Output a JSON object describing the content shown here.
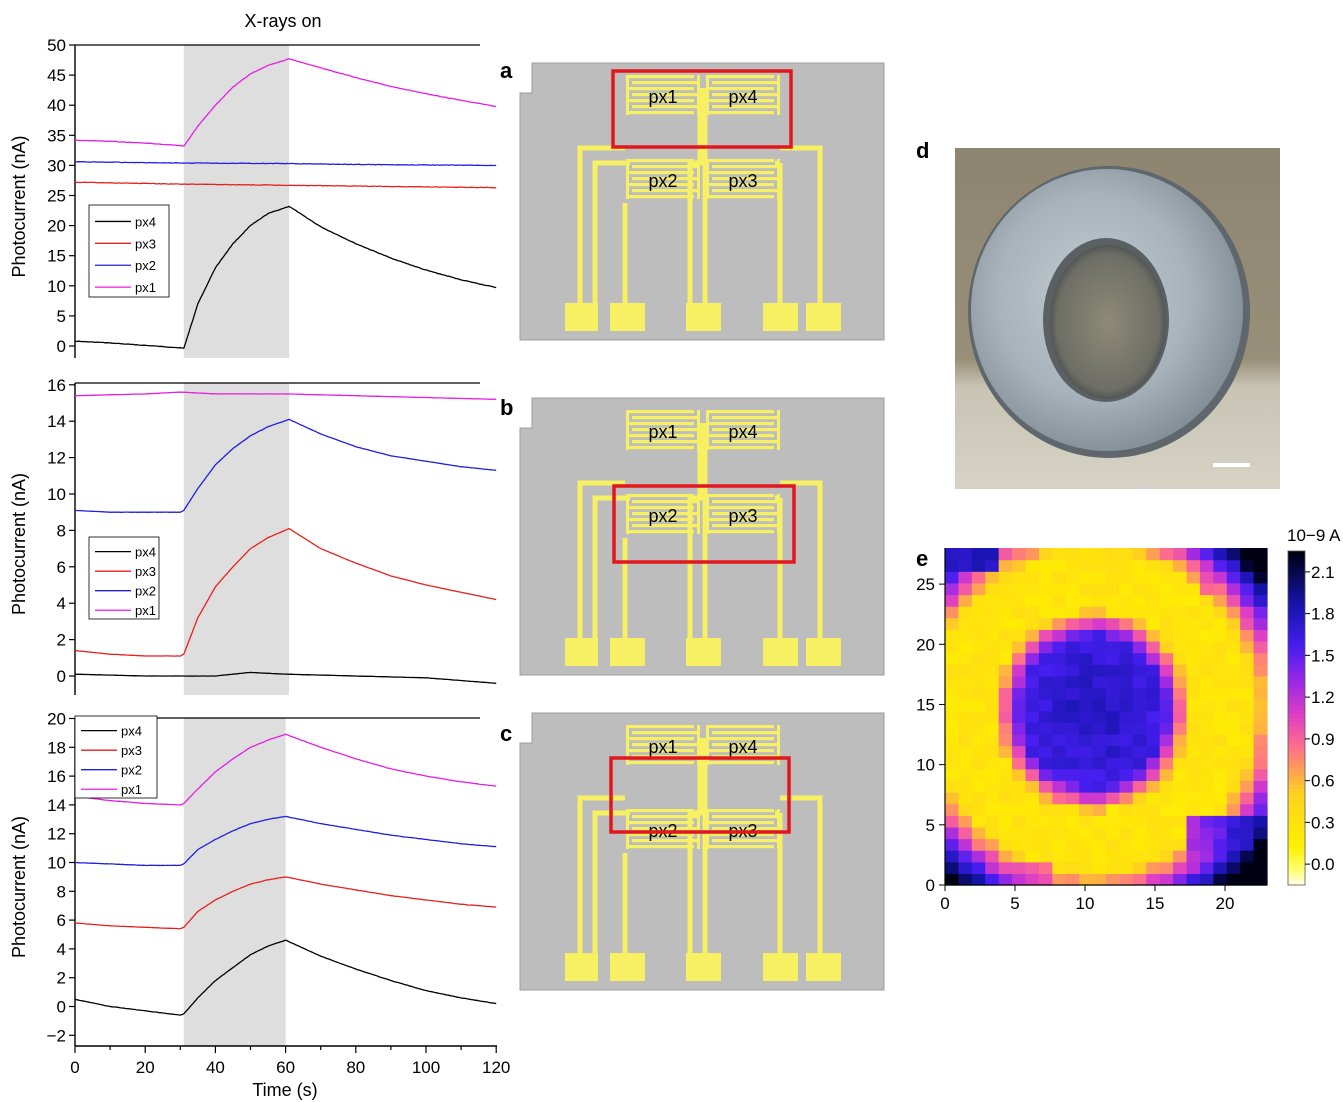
{
  "figure": {
    "top_label": "X-rays on",
    "panel_labels": [
      "a",
      "b",
      "c",
      "d",
      "e"
    ],
    "colors": {
      "px4": "#000000",
      "px3": "#e8201c",
      "px2": "#1f1fe0",
      "px1": "#e51ee5",
      "shade": "#dedede",
      "device_bg": "#bdbdbd",
      "electrode": "#f6f062",
      "highlight": "#e2161c"
    }
  },
  "chart_data": [
    {
      "type": "line",
      "panel": "a",
      "xlabel": "Time (s)",
      "ylabel": "Photocurrent (nA)",
      "xlim": [
        0,
        120
      ],
      "ylim": [
        -2,
        50
      ],
      "yticks": [
        0,
        5,
        10,
        15,
        20,
        25,
        30,
        35,
        40,
        45,
        50
      ],
      "shaded_x": [
        31,
        61
      ],
      "legend": [
        "px4",
        "px3",
        "px2",
        "px1"
      ],
      "series": [
        {
          "name": "px4",
          "color": "#000000",
          "x": [
            0,
            10,
            20,
            30,
            31,
            35,
            40,
            45,
            50,
            55,
            61,
            70,
            80,
            90,
            100,
            110,
            120
          ],
          "values": [
            0.8,
            0.5,
            0.1,
            -0.3,
            -0.4,
            7,
            13,
            17,
            20,
            22,
            23.2,
            19.8,
            17,
            14.6,
            12.6,
            11,
            9.7
          ]
        },
        {
          "name": "px3",
          "color": "#e8201c",
          "x": [
            0,
            30,
            60,
            90,
            120
          ],
          "values": [
            27.2,
            26.9,
            26.7,
            26.5,
            26.3
          ]
        },
        {
          "name": "px2",
          "color": "#1f1fe0",
          "x": [
            0,
            30,
            60,
            90,
            120
          ],
          "values": [
            30.6,
            30.4,
            30.3,
            30.1,
            30.0
          ]
        },
        {
          "name": "px1",
          "color": "#e51ee5",
          "x": [
            0,
            10,
            20,
            30,
            31,
            35,
            40,
            45,
            50,
            55,
            61,
            70,
            80,
            90,
            100,
            110,
            120
          ],
          "values": [
            34.2,
            34.0,
            33.7,
            33.3,
            33.2,
            36.5,
            40,
            43,
            45.2,
            46.6,
            47.7,
            46.2,
            44.6,
            43.1,
            41.9,
            40.8,
            39.8
          ]
        }
      ]
    },
    {
      "type": "line",
      "panel": "b",
      "xlabel": "Time (s)",
      "ylabel": "Photocurrent (nA)",
      "xlim": [
        0,
        120
      ],
      "ylim": [
        -1,
        16
      ],
      "yticks": [
        0,
        2,
        4,
        6,
        8,
        10,
        12,
        14,
        16
      ],
      "shaded_x": [
        31,
        61
      ],
      "legend": [
        "px4",
        "px3",
        "px2",
        "px1"
      ],
      "series": [
        {
          "name": "px4",
          "color": "#000000",
          "x": [
            0,
            20,
            40,
            50,
            60,
            80,
            100,
            120
          ],
          "values": [
            0.1,
            0.0,
            0.0,
            0.2,
            0.1,
            0.0,
            -0.1,
            -0.4
          ]
        },
        {
          "name": "px3",
          "color": "#e8201c",
          "x": [
            0,
            10,
            20,
            30,
            31,
            35,
            40,
            45,
            50,
            55,
            61,
            70,
            80,
            90,
            100,
            110,
            120
          ],
          "values": [
            1.4,
            1.2,
            1.1,
            1.1,
            1.2,
            3.2,
            4.9,
            6.0,
            7.0,
            7.6,
            8.1,
            7.0,
            6.2,
            5.5,
            5.0,
            4.6,
            4.2
          ]
        },
        {
          "name": "px2",
          "color": "#1f1fe0",
          "x": [
            0,
            10,
            20,
            30,
            31,
            35,
            40,
            45,
            50,
            55,
            61,
            70,
            80,
            90,
            100,
            110,
            120
          ],
          "values": [
            9.1,
            9.0,
            9.0,
            9.0,
            9.1,
            10.3,
            11.6,
            12.5,
            13.2,
            13.7,
            14.1,
            13.3,
            12.6,
            12.1,
            11.8,
            11.5,
            11.3
          ]
        },
        {
          "name": "px1",
          "color": "#e51ee5",
          "x": [
            0,
            20,
            30,
            40,
            60,
            80,
            100,
            120
          ],
          "values": [
            15.4,
            15.5,
            15.6,
            15.5,
            15.5,
            15.4,
            15.3,
            15.2
          ]
        }
      ]
    },
    {
      "type": "line",
      "panel": "c",
      "xlabel": "Time (s)",
      "ylabel": "Photocurrent (nA)",
      "xlim": [
        0,
        120
      ],
      "ylim": [
        -2.5,
        20
      ],
      "yticks": [
        -2,
        0,
        2,
        4,
        6,
        8,
        10,
        12,
        14,
        16,
        18,
        20
      ],
      "xticks": [
        0,
        20,
        40,
        60,
        80,
        100,
        120
      ],
      "shaded_x": [
        31,
        60
      ],
      "legend": [
        "px4",
        "px3",
        "px2",
        "px1"
      ],
      "series": [
        {
          "name": "px4",
          "color": "#000000",
          "x": [
            0,
            10,
            20,
            30,
            31,
            35,
            40,
            45,
            50,
            55,
            60,
            70,
            80,
            90,
            100,
            110,
            120
          ],
          "values": [
            0.5,
            0.0,
            -0.3,
            -0.6,
            -0.5,
            0.6,
            1.8,
            2.7,
            3.6,
            4.2,
            4.6,
            3.5,
            2.6,
            1.8,
            1.1,
            0.6,
            0.2
          ]
        },
        {
          "name": "px3",
          "color": "#e8201c",
          "x": [
            0,
            10,
            20,
            30,
            31,
            35,
            40,
            45,
            50,
            55,
            60,
            70,
            80,
            90,
            100,
            110,
            120
          ],
          "values": [
            5.8,
            5.6,
            5.5,
            5.4,
            5.5,
            6.6,
            7.4,
            8.0,
            8.5,
            8.8,
            9.0,
            8.5,
            8.1,
            7.7,
            7.4,
            7.1,
            6.9
          ]
        },
        {
          "name": "px2",
          "color": "#1f1fe0",
          "x": [
            0,
            10,
            20,
            30,
            31,
            35,
            40,
            45,
            50,
            55,
            60,
            70,
            80,
            90,
            100,
            110,
            120
          ],
          "values": [
            10.0,
            9.9,
            9.8,
            9.8,
            9.9,
            10.9,
            11.6,
            12.2,
            12.7,
            13.0,
            13.2,
            12.7,
            12.3,
            11.9,
            11.6,
            11.3,
            11.1
          ]
        },
        {
          "name": "px1",
          "color": "#e51ee5",
          "x": [
            0,
            10,
            20,
            30,
            31,
            35,
            40,
            45,
            50,
            55,
            60,
            70,
            80,
            90,
            100,
            110,
            120
          ],
          "values": [
            14.6,
            14.3,
            14.1,
            14.0,
            14.1,
            15.1,
            16.3,
            17.2,
            18.0,
            18.5,
            18.9,
            18.0,
            17.2,
            16.5,
            16.0,
            15.6,
            15.3
          ]
        }
      ]
    },
    {
      "type": "heatmap",
      "panel": "e",
      "xticks": [
        0,
        5,
        10,
        15,
        20
      ],
      "yticks": [
        0,
        5,
        10,
        15,
        20,
        25
      ],
      "xlim": [
        0,
        23
      ],
      "ylim": [
        0,
        28
      ],
      "colorbar_title": "10−9 A",
      "colorbar_ticks": [
        "2.1",
        "1.8",
        "1.5",
        "1.2",
        "0.9",
        "0.6",
        "0.3",
        "0.0"
      ],
      "value_range": [
        -0.15,
        2.25
      ]
    }
  ],
  "device_panels": [
    {
      "label": "a",
      "pixels": [
        "px1",
        "px4",
        "px2",
        "px3"
      ],
      "highlight": "top-row"
    },
    {
      "label": "b",
      "pixels": [
        "px1",
        "px4",
        "px2",
        "px3"
      ],
      "highlight": "bottom-row"
    },
    {
      "label": "c",
      "pixels": [
        "px1",
        "px4",
        "px2",
        "px3"
      ],
      "highlight": "middle"
    }
  ]
}
